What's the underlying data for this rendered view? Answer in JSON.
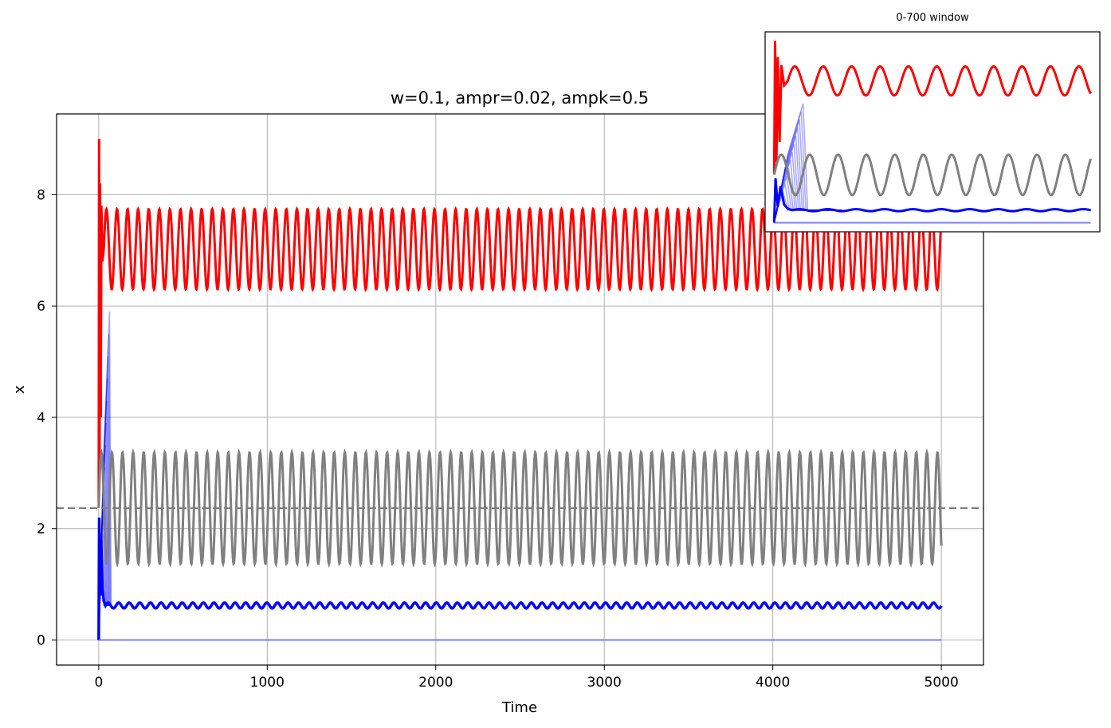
{
  "chart_data": [
    {
      "type": "line",
      "title": "w=0.1, ampr=0.02, ampk=0.5",
      "xlabel": "Time",
      "ylabel": "x",
      "xlim": [
        -250,
        5250
      ],
      "ylim": [
        -0.45,
        9.45
      ],
      "xticks": [
        0,
        1000,
        2000,
        3000,
        4000,
        5000
      ],
      "yticks": [
        0,
        2,
        4,
        6,
        8
      ],
      "grid": true,
      "threshold": {
        "y": 2.37,
        "style": "dashed",
        "color": "#808080"
      },
      "series": [
        {
          "color": "#ff0000",
          "kind": "oscillation",
          "t_start": 30,
          "t_end": 5000,
          "mean": 7.02,
          "amplitude": 0.72,
          "period": 62.8,
          "initial_peak": 9.0
        },
        {
          "color": "#808080",
          "kind": "oscillation",
          "t_start": 0,
          "t_end": 5000,
          "mean": 2.37,
          "amplitude": 1.0,
          "period": 62.8
        },
        {
          "color": "#0000ff",
          "kind": "oscillation",
          "t_start": 40,
          "t_end": 5000,
          "mean": 0.62,
          "amplitude": 0.05,
          "period": 62.8,
          "initial_peak": 6.4
        },
        {
          "color": "#6666ff",
          "kind": "flat",
          "t_start": 0,
          "t_end": 5000,
          "value": 0.0
        }
      ]
    },
    {
      "type": "line",
      "title": "0-700 window",
      "xlim": [
        -20,
        720
      ],
      "ylim": [
        -0.45,
        9.45
      ],
      "series_ref": "same series as main chart, t from 0 to 700"
    }
  ]
}
